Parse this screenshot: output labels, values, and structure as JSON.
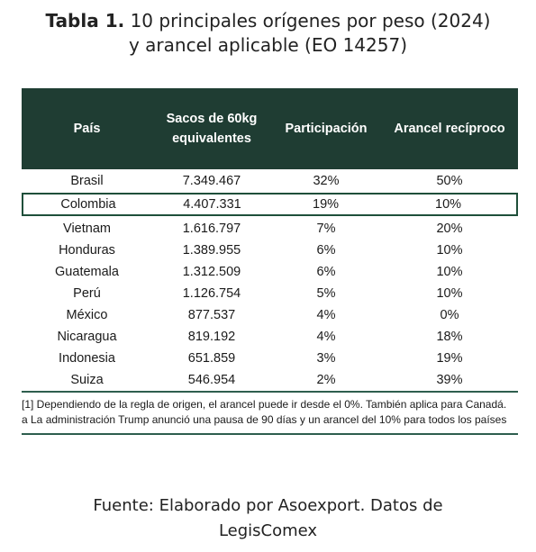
{
  "title": {
    "label": "Tabla 1.",
    "line1": "10 principales orígenes por peso (2024)",
    "line2": "y arancel aplicable (EO 14257)"
  },
  "table": {
    "headers": {
      "country": "País",
      "bags_line1": "Sacos de 60kg",
      "bags_line2": "equivalentes",
      "share": "Participación",
      "tariff": "Arancel recíproco"
    },
    "rows": [
      {
        "country": "Brasil",
        "bags": "7.349.467",
        "share": "32%",
        "tariff": "50%"
      },
      {
        "country": "Colombia",
        "bags": "4.407.331",
        "share": "19%",
        "tariff": "10%"
      },
      {
        "country": "Vietnam",
        "bags": "1.616.797",
        "share": "7%",
        "tariff": "20%"
      },
      {
        "country": "Honduras",
        "bags": "1.389.955",
        "share": "6%",
        "tariff": "10%"
      },
      {
        "country": "Guatemala",
        "bags": "1.312.509",
        "share": "6%",
        "tariff": "10%"
      },
      {
        "country": "Perú",
        "bags": "1.126.754",
        "share": "5%",
        "tariff": "10%"
      },
      {
        "country": "México",
        "bags": "877.537",
        "share": "4%",
        "tariff": "0%"
      },
      {
        "country": "Nicaragua",
        "bags": "819.192",
        "share": "4%",
        "tariff": "18%"
      },
      {
        "country": "Indonesia",
        "bags": "651.859",
        "share": "3%",
        "tariff": "19%"
      },
      {
        "country": "Suiza",
        "bags": "546.954",
        "share": "2%",
        "tariff": "39%"
      }
    ],
    "highlighted_country": "Colombia"
  },
  "notes": [
    "[1] Dependiendo de la regla de origen, el arancel puede ir desde el 0%. También aplica para Canadá.",
    "a   La administración Trump anunció una pausa de 90 días y un arancel del 10% para todos los países"
  ],
  "source": {
    "line1": "Fuente: Elaborado por Asoexport. Datos de",
    "line2": "LegisComex"
  },
  "colors": {
    "header_bg": "#1f3d33",
    "accent_line": "#2e5e4e",
    "highlight_border": "#1f4f3a"
  }
}
